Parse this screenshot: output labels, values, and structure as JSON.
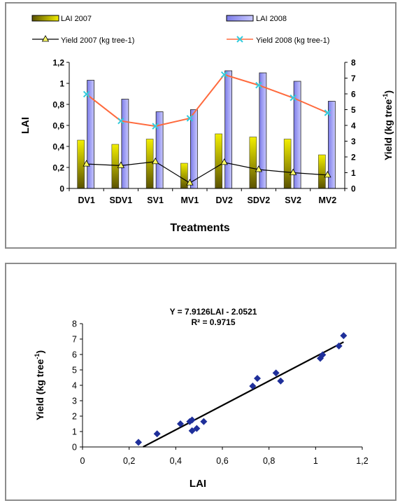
{
  "chart_data": [
    {
      "type": "bar",
      "categories": [
        "DV1",
        "SDV1",
        "SV1",
        "MV1",
        "DV2",
        "SDV2",
        "SV2",
        "MV2"
      ],
      "series": [
        {
          "name": "LAI 2007",
          "kind": "bar",
          "axis": "left",
          "values": [
            0.46,
            0.42,
            0.47,
            0.24,
            0.52,
            0.49,
            0.47,
            0.32
          ],
          "color": "#d9d400"
        },
        {
          "name": "LAI 2008",
          "kind": "bar",
          "axis": "left",
          "values": [
            1.03,
            0.85,
            0.73,
            0.75,
            1.12,
            1.1,
            1.02,
            0.83
          ],
          "color": "#9999ff"
        },
        {
          "name": "Yield 2007 (kg tree-1)",
          "kind": "line",
          "axis": "right",
          "marker": "triangle",
          "values": [
            1.55,
            1.45,
            1.7,
            0.35,
            1.65,
            1.2,
            1.0,
            0.85
          ],
          "color": "#000000"
        },
        {
          "name": "Yield 2008 (kg tree-1)",
          "kind": "line",
          "axis": "right",
          "marker": "x",
          "values": [
            5.98,
            4.28,
            3.95,
            4.45,
            7.22,
            6.55,
            5.75,
            4.8
          ],
          "color": "#ff6a3d"
        }
      ],
      "ylabel": "LAI",
      "y2label": "Yield (kg tree",
      "y2label_sup": "-1",
      "y2label_end": ")",
      "xlabel": "Treatments",
      "ylim": [
        0,
        1.2
      ],
      "y2lim": [
        0,
        8
      ],
      "yticks": [
        "0",
        "0,2",
        "0,4",
        "0,6",
        "0,8",
        "1",
        "1,2"
      ],
      "y2ticks": [
        "0",
        "1",
        "2",
        "3",
        "4",
        "5",
        "6",
        "7",
        "8"
      ],
      "legend_position": "top",
      "grid": false
    },
    {
      "type": "scatter",
      "points": [
        {
          "x": 0.24,
          "y": 0.3
        },
        {
          "x": 0.32,
          "y": 0.85
        },
        {
          "x": 0.42,
          "y": 1.5
        },
        {
          "x": 0.46,
          "y": 1.65
        },
        {
          "x": 0.47,
          "y": 1.75
        },
        {
          "x": 0.47,
          "y": 1.05
        },
        {
          "x": 0.49,
          "y": 1.2
        },
        {
          "x": 0.52,
          "y": 1.65
        },
        {
          "x": 0.73,
          "y": 3.95
        },
        {
          "x": 0.75,
          "y": 4.45
        },
        {
          "x": 0.83,
          "y": 4.8
        },
        {
          "x": 0.85,
          "y": 4.28
        },
        {
          "x": 1.02,
          "y": 5.75
        },
        {
          "x": 1.03,
          "y": 5.98
        },
        {
          "x": 1.1,
          "y": 6.55
        },
        {
          "x": 1.12,
          "y": 7.22
        }
      ],
      "trendline": {
        "slope": 7.9126,
        "intercept": -2.0521,
        "x_range": [
          0.26,
          1.12
        ]
      },
      "equation": "Y = 7.9126LAI  - 2.0521",
      "r2": "R² = 0.9715",
      "xlabel": "LAI",
      "ylabel": "Yield (kg tree",
      "ylabel_sup": "-1",
      "ylabel_end": ")",
      "xlim": [
        0,
        1.2
      ],
      "ylim": [
        0,
        8
      ],
      "xticks": [
        "0",
        "0,2",
        "0,4",
        "0,6",
        "0,8",
        "1",
        "1,2"
      ],
      "yticks": [
        "0",
        "1",
        "2",
        "3",
        "4",
        "5",
        "6",
        "7",
        "8"
      ],
      "marker_color": "#1f2f9a",
      "grid": false
    }
  ]
}
